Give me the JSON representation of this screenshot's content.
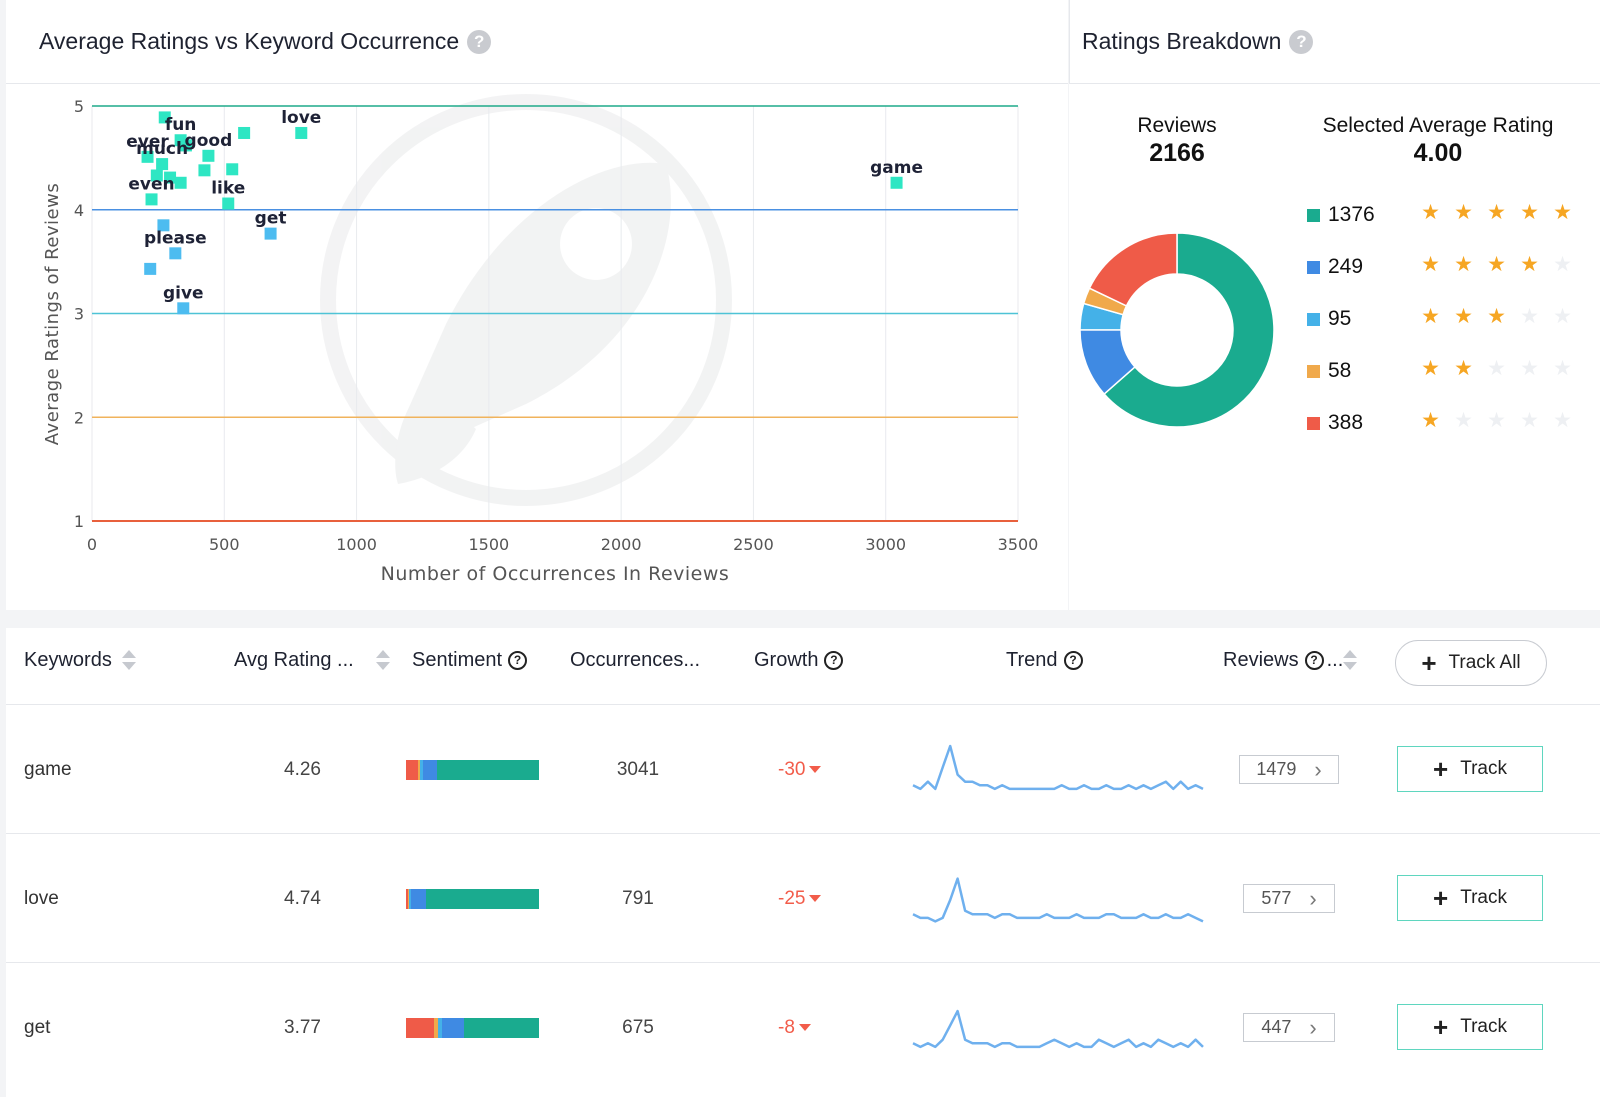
{
  "scatter": {
    "title": "Average Ratings vs Keyword Occurrence",
    "help": "?",
    "chart_data": {
      "type": "scatter",
      "title": "Average Ratings vs Keyword Occurrence",
      "xlabel": "Number of Occurrences In Reviews",
      "ylabel": "Average Ratings of Reviews",
      "xlim": [
        0,
        3500
      ],
      "ylim": [
        1,
        5
      ],
      "x_ticks": [
        "0",
        "500",
        "1000",
        "1500",
        "2000",
        "2500",
        "3000",
        "3500"
      ],
      "y_ticks": [
        "1",
        "2",
        "3",
        "4",
        "5"
      ],
      "threshold_lines": [
        {
          "y": 5,
          "color": "#1faa8a"
        },
        {
          "y": 4,
          "color": "#4a90e2"
        },
        {
          "y": 3,
          "color": "#4ec3d6"
        },
        {
          "y": 2,
          "color": "#f0b35c"
        },
        {
          "y": 1,
          "color": "#e8603c"
        }
      ],
      "points": [
        {
          "x": 3041,
          "y": 4.26,
          "label": "game",
          "color": "#2ee6c3"
        },
        {
          "x": 791,
          "y": 4.74,
          "label": "love",
          "color": "#2ee6c3"
        },
        {
          "x": 675,
          "y": 3.77,
          "label": "get",
          "color": "#4dbcf0"
        },
        {
          "x": 275,
          "y": 4.89,
          "label": "",
          "color": "#2ee6c3"
        },
        {
          "x": 335,
          "y": 4.67,
          "label": "fun",
          "color": "#2ee6c3"
        },
        {
          "x": 355,
          "y": 4.62,
          "label": "",
          "color": "#2ee6c3"
        },
        {
          "x": 575,
          "y": 4.74,
          "label": "",
          "color": "#2ee6c3"
        },
        {
          "x": 440,
          "y": 4.52,
          "label": "good",
          "color": "#2ee6c3"
        },
        {
          "x": 210,
          "y": 4.51,
          "label": "ever",
          "color": "#2ee6c3"
        },
        {
          "x": 265,
          "y": 4.44,
          "label": "much",
          "color": "#2ee6c3"
        },
        {
          "x": 425,
          "y": 4.38,
          "label": "",
          "color": "#2ee6c3"
        },
        {
          "x": 530,
          "y": 4.39,
          "label": "",
          "color": "#2ee6c3"
        },
        {
          "x": 245,
          "y": 4.33,
          "label": "",
          "color": "#2ee6c3"
        },
        {
          "x": 295,
          "y": 4.31,
          "label": "",
          "color": "#2ee6c3"
        },
        {
          "x": 335,
          "y": 4.26,
          "label": "",
          "color": "#2ee6c3"
        },
        {
          "x": 515,
          "y": 4.06,
          "label": "like",
          "color": "#2ee6c3"
        },
        {
          "x": 225,
          "y": 4.1,
          "label": "even",
          "color": "#2ee6c3"
        },
        {
          "x": 270,
          "y": 3.85,
          "label": "",
          "color": "#4dbcf0"
        },
        {
          "x": 315,
          "y": 3.58,
          "label": "please",
          "color": "#4dbcf0"
        },
        {
          "x": 220,
          "y": 3.43,
          "label": "",
          "color": "#4dbcf0"
        },
        {
          "x": 345,
          "y": 3.05,
          "label": "give",
          "color": "#4dbcf0"
        }
      ]
    }
  },
  "breakdown": {
    "title": "Ratings Breakdown",
    "help": "?",
    "reviews_label": "Reviews",
    "reviews_value": "2166",
    "avg_label": "Selected Average Rating",
    "avg_value": "4.00",
    "chart_data": {
      "type": "pie",
      "labels": [
        "5 stars",
        "4 stars",
        "3 stars",
        "2 stars",
        "1 star"
      ],
      "values": [
        1376,
        249,
        95,
        58,
        388
      ],
      "colors": [
        "#1aab8f",
        "#3f8ae3",
        "#44b1e8",
        "#f0a94b",
        "#ef5b48"
      ]
    },
    "rows": [
      {
        "count": "1376",
        "stars": 5,
        "color": "#1aab8f"
      },
      {
        "count": "249",
        "stars": 4,
        "color": "#3f8ae3"
      },
      {
        "count": "95",
        "stars": 3,
        "color": "#44b1e8"
      },
      {
        "count": "58",
        "stars": 2,
        "color": "#f0a94b"
      },
      {
        "count": "388",
        "stars": 1,
        "color": "#ef5b48"
      }
    ],
    "star_glyph": "★",
    "star_on_color": "#f6a623",
    "star_off_color": "#eef0f3"
  },
  "table": {
    "headers": {
      "keywords": "Keywords",
      "avg_rating": "Avg Rating ...",
      "sentiment": "Sentiment",
      "occurrences": "Occurrences...",
      "growth": "Growth",
      "trend": "Trend",
      "reviews": "Reviews",
      "reviews_more": "...",
      "help": "?"
    },
    "track_all": "Track All",
    "track_label": "Track",
    "plus": "+",
    "chevron": "›",
    "rows": [
      {
        "keyword": "game",
        "avg": "4.26",
        "occurrences": "3041",
        "growth": "-30",
        "reviews": "1479",
        "sentiment": [
          12,
          2,
          3,
          13,
          100
        ],
        "trend": [
          3,
          2,
          4,
          2,
          8,
          14,
          6,
          4,
          4,
          3,
          3,
          2,
          3,
          2,
          2,
          2,
          2,
          2,
          2,
          2,
          3,
          2,
          2,
          3,
          2,
          2,
          3,
          2,
          2,
          3,
          2,
          3,
          2,
          3,
          4,
          2,
          4,
          2,
          3,
          2
        ]
      },
      {
        "keyword": "love",
        "avg": "4.74",
        "occurrences": "791",
        "growth": "-25",
        "reviews": "577",
        "sentiment": [
          2,
          1,
          2,
          15,
          113
        ],
        "trend": [
          3,
          2,
          2,
          1,
          2,
          7,
          13,
          4,
          3,
          3,
          3,
          2,
          3,
          3,
          2,
          2,
          2,
          2,
          3,
          2,
          2,
          2,
          3,
          2,
          2,
          2,
          3,
          3,
          2,
          2,
          2,
          3,
          2,
          2,
          3,
          2,
          2,
          3,
          2,
          1
        ]
      },
      {
        "keyword": "get",
        "avg": "3.77",
        "occurrences": "675",
        "growth": "-8",
        "reviews": "447",
        "sentiment": [
          28,
          4,
          4,
          22,
          75
        ],
        "trend": [
          3,
          2,
          3,
          2,
          4,
          8,
          12,
          4,
          3,
          3,
          3,
          2,
          3,
          3,
          2,
          2,
          2,
          2,
          3,
          4,
          3,
          2,
          3,
          2,
          2,
          4,
          3,
          2,
          3,
          4,
          2,
          3,
          2,
          4,
          3,
          2,
          3,
          2,
          4,
          2
        ]
      }
    ]
  },
  "colors": {
    "five": "#1aab8f",
    "four": "#3f8ae3",
    "three": "#44b1e8",
    "two": "#f0a94b",
    "one": "#ef5b48",
    "trend_line": "#6fb0ee"
  }
}
